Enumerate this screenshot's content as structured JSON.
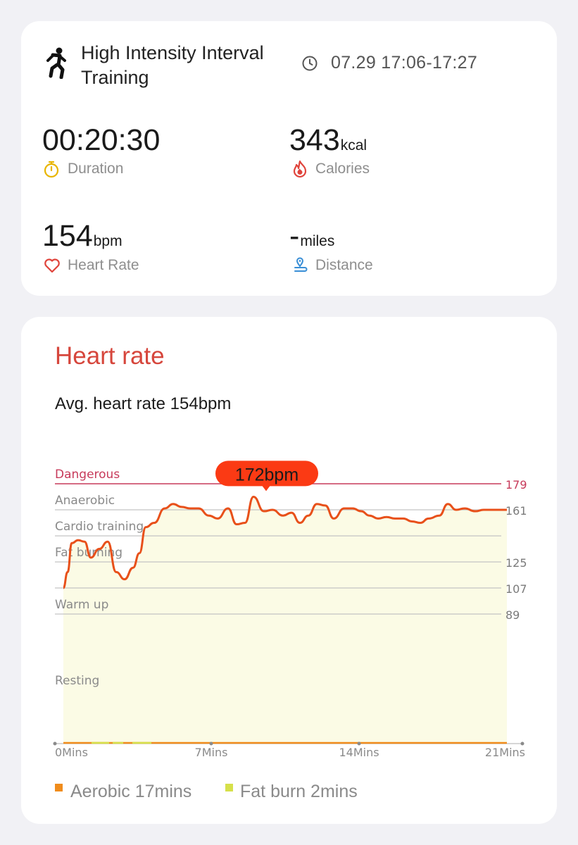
{
  "summary": {
    "workout_icon": "running-person-icon",
    "workout_name": "High Intensity Interval Training",
    "clock_icon": "clock-icon",
    "time_range": "07.29 17:06-17:27",
    "duration": {
      "value": "00:20:30",
      "label": "Duration",
      "icon": "stopwatch-icon",
      "icon_color": "#e8b500"
    },
    "calories": {
      "value": "343",
      "unit": "kcal",
      "label": "Calories",
      "icon": "flame-icon",
      "icon_color": "#e0443c"
    },
    "heart_rate": {
      "value": "154",
      "unit": "bpm",
      "label": "Heart Rate",
      "icon": "heart-icon",
      "icon_color": "#e0443c"
    },
    "distance": {
      "value": "-",
      "unit": "miles",
      "label": "Distance",
      "icon": "location-pin-icon",
      "icon_color": "#3a8fd6"
    }
  },
  "heart_rate_card": {
    "title": "Heart rate",
    "avg_text": "Avg. heart rate 154bpm",
    "title_color": "#d6463c"
  },
  "chart_data": {
    "type": "area",
    "x_unit": "Mins",
    "xlim": [
      0,
      21
    ],
    "ylim": [
      40,
      195
    ],
    "x_ticks": [
      {
        "value": 0,
        "label": "0Mins"
      },
      {
        "value": 7,
        "label": "7Mins"
      },
      {
        "value": 14,
        "label": "14Mins"
      },
      {
        "value": 21,
        "label": "21Mins"
      }
    ],
    "zones": [
      {
        "name": "Dangerous",
        "threshold": 179,
        "value_label": "179",
        "color": "#c73a5a"
      },
      {
        "name": "Anaerobic",
        "threshold": 161,
        "value_label": "161",
        "color": "#c4c4c4"
      },
      {
        "name": "Cardio training",
        "threshold": 143,
        "value_label": "",
        "color": "#c4c4c4"
      },
      {
        "name": "Fat burning",
        "threshold": 125,
        "value_label": "125",
        "color": "#c4c4c4"
      },
      {
        "name": "",
        "threshold": 107,
        "value_label": "107",
        "color": "#c4c4c4"
      },
      {
        "name": "Warm up",
        "threshold": 89,
        "value_label": "89",
        "color": "#c4c4c4"
      },
      {
        "name": "Resting",
        "threshold": 35,
        "value_label": "",
        "color": "#c4c4c4"
      }
    ],
    "series": [
      {
        "x": [
          0,
          0.2,
          0.4,
          0.7,
          1.0,
          1.3,
          1.7,
          2.1,
          2.5,
          2.9,
          3.3,
          3.6,
          3.9,
          4.3,
          4.8,
          5.2,
          5.6,
          6.0,
          6.4,
          6.9,
          7.3,
          7.8,
          8.2,
          8.6,
          9.0,
          9.5,
          9.9,
          10.4,
          10.8,
          11.2,
          11.6,
          12.0,
          12.4,
          12.8,
          13.3,
          13.7,
          14.1,
          14.5,
          14.9,
          15.3,
          15.7,
          16.1,
          16.5,
          16.9,
          17.3,
          17.8,
          18.2,
          18.6,
          19.0,
          19.5,
          19.9,
          20.3,
          20.6,
          21.0
        ],
        "y": [
          107,
          118,
          138,
          140,
          139,
          128,
          134,
          139,
          118,
          113,
          121,
          131,
          149,
          152,
          162,
          165,
          163,
          162,
          162,
          157,
          155,
          162,
          151,
          152,
          170,
          160,
          161,
          157,
          159,
          152,
          157,
          165,
          164,
          155,
          162,
          162,
          160,
          157,
          155,
          156,
          155,
          155,
          153,
          152,
          155,
          157,
          165,
          161,
          162,
          160,
          161,
          161,
          161,
          161
        ],
        "line_color": "#e8501a",
        "fill_color": "#fbfbe5"
      }
    ],
    "peak": {
      "x": 9.6,
      "y": 172,
      "label": "172bpm",
      "color": "#fb3a14"
    },
    "legend": [
      {
        "label": "Aerobic 17mins",
        "color": "#f08c1c"
      },
      {
        "label": "Fat burn 2mins",
        "color": "#d6e04a"
      }
    ]
  }
}
